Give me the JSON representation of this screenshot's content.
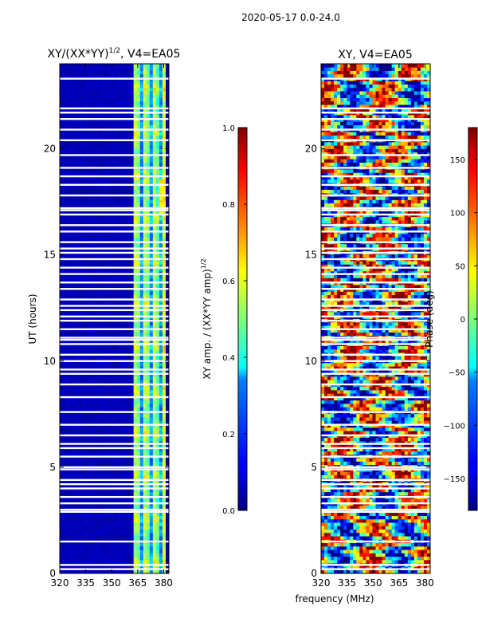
{
  "suptitle": "2020-05-17 0.0-24.0",
  "chart_data": [
    {
      "type": "heatmap",
      "title_main": "XY/(XX*YY)",
      "title_sup": "1/2",
      "title_tail": ", V4=EA05",
      "ylabel": "UT (hours)",
      "xlabel": "",
      "x_ticks": [
        "320",
        "335",
        "350",
        "365",
        "380"
      ],
      "x_tick_values": [
        320,
        335,
        350,
        365,
        380
      ],
      "xlim": [
        320,
        383
      ],
      "y_ticks": [
        "0",
        "5",
        "10",
        "15",
        "20"
      ],
      "y_tick_values": [
        0,
        5,
        10,
        15,
        20
      ],
      "ylim": [
        0,
        24
      ],
      "colorbar": {
        "label_main": "XY amp. / (XX*YY amp)",
        "label_sup": "1/2",
        "ticks": [
          "0.0",
          "0.2",
          "0.4",
          "0.6",
          "0.8",
          "1.0"
        ],
        "tick_values": [
          0.0,
          0.2,
          0.4,
          0.6,
          0.8,
          1.0
        ],
        "range": [
          0.0,
          1.0
        ],
        "colormap": "jet"
      },
      "flagged_rows_ut": [
        0.2,
        0.4,
        1.5,
        2.9,
        3.0,
        3.3,
        3.6,
        4.0,
        4.2,
        4.4,
        4.9,
        5.0,
        5.5,
        5.9,
        6.1,
        6.5,
        7.0,
        7.6,
        8.3,
        8.9,
        9.4,
        9.6,
        10.0,
        10.3,
        10.8,
        11.0,
        11.1,
        11.5,
        11.9,
        12.1,
        12.4,
        12.6,
        12.9,
        13.4,
        13.7,
        14.1,
        14.4,
        14.8,
        15.1,
        15.3,
        15.6,
        16.1,
        16.4,
        16.9,
        17.1,
        17.2,
        17.8,
        18.3,
        18.7,
        19.1,
        19.7,
        20.4,
        20.9,
        21.4,
        21.7,
        21.9,
        23.3
      ],
      "active_band_mhz": [
        363,
        381
      ]
    },
    {
      "type": "heatmap",
      "title_main": "XY, V4=EA05",
      "ylabel": "",
      "xlabel": "frequency (MHz)",
      "x_ticks": [
        "320",
        "335",
        "350",
        "365",
        "380"
      ],
      "x_tick_values": [
        320,
        335,
        350,
        365,
        380
      ],
      "xlim": [
        320,
        383
      ],
      "y_ticks": [
        "0",
        "5",
        "10",
        "15",
        "20"
      ],
      "y_tick_values": [
        0,
        5,
        10,
        15,
        20
      ],
      "ylim": [
        0,
        24
      ],
      "colorbar": {
        "label_main": "Phase (deg)",
        "ticks": [
          "−150",
          "−100",
          "−50",
          "0",
          "50",
          "100",
          "150"
        ],
        "tick_values": [
          -150,
          -100,
          -50,
          0,
          50,
          100,
          150
        ],
        "range": [
          -180,
          180
        ],
        "colormap": "jet"
      },
      "flagged_rows_ut": [
        0.2,
        0.4,
        1.5,
        2.9,
        3.0,
        3.3,
        3.6,
        4.0,
        4.2,
        4.4,
        4.9,
        5.0,
        5.5,
        5.9,
        6.1,
        6.5,
        7.0,
        7.6,
        8.3,
        8.9,
        9.4,
        9.6,
        10.0,
        10.3,
        10.8,
        11.0,
        11.1,
        11.5,
        11.9,
        12.1,
        12.4,
        12.6,
        12.9,
        13.4,
        13.7,
        14.1,
        14.4,
        14.8,
        15.1,
        15.3,
        15.6,
        16.1,
        16.4,
        16.9,
        17.1,
        17.2,
        17.8,
        18.3,
        18.7,
        19.1,
        19.7,
        20.4,
        20.9,
        21.4,
        21.7,
        21.9,
        23.3
      ]
    }
  ]
}
